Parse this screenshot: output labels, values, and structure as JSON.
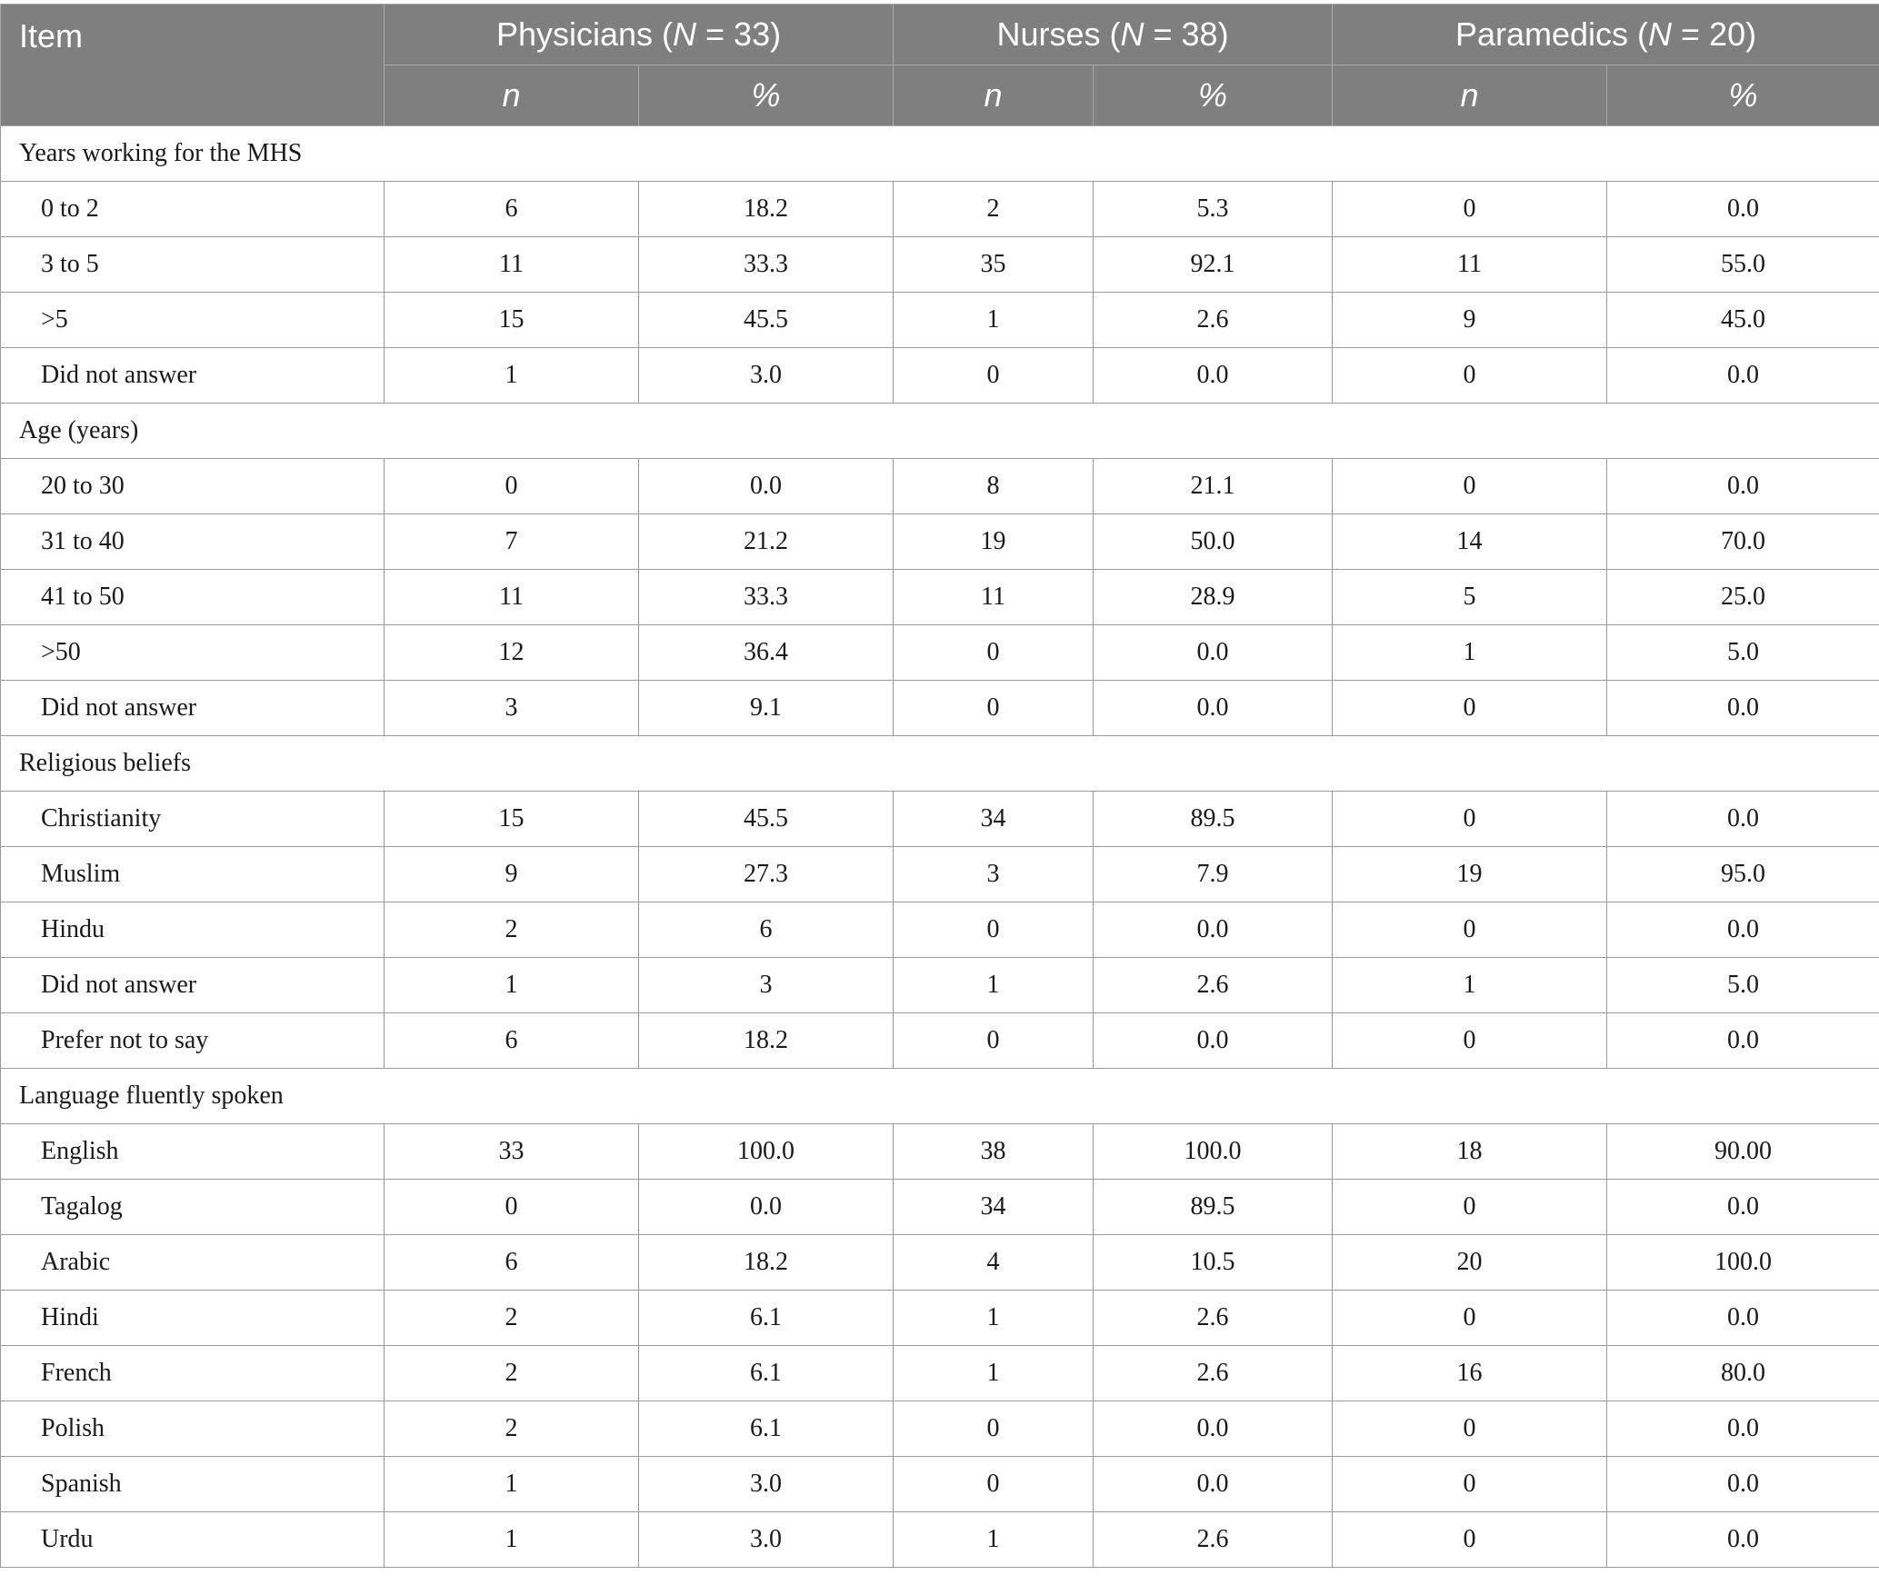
{
  "header": {
    "item": "Item",
    "groups": [
      {
        "name": "Physicians",
        "n_label": "N",
        "n_text": " = 33)"
      },
      {
        "name": "Nurses",
        "n_label": "N",
        "n_text": " = 38)"
      },
      {
        "name": "Paramedics",
        "n_label": "N",
        "n_text": " = 20)"
      }
    ],
    "sub_n": "n",
    "sub_pct": "%"
  },
  "sections": [
    {
      "title": "Years working for the MHS",
      "rows": [
        {
          "label": "0 to 2",
          "values": [
            "6",
            "18.2",
            "2",
            "5.3",
            "0",
            "0.0"
          ]
        },
        {
          "label": "3 to 5",
          "values": [
            "11",
            "33.3",
            "35",
            "92.1",
            "11",
            "55.0"
          ]
        },
        {
          "label": ">5",
          "values": [
            "15",
            "45.5",
            "1",
            "2.6",
            "9",
            "45.0"
          ]
        },
        {
          "label": "Did not answer",
          "values": [
            "1",
            "3.0",
            "0",
            "0.0",
            "0",
            "0.0"
          ]
        }
      ]
    },
    {
      "title": "Age (years)",
      "rows": [
        {
          "label": "20 to 30",
          "values": [
            "0",
            "0.0",
            "8",
            "21.1",
            "0",
            "0.0"
          ]
        },
        {
          "label": "31 to 40",
          "values": [
            "7",
            "21.2",
            "19",
            "50.0",
            "14",
            "70.0"
          ]
        },
        {
          "label": "41 to 50",
          "values": [
            "11",
            "33.3",
            "11",
            "28.9",
            "5",
            "25.0"
          ]
        },
        {
          "label": ">50",
          "values": [
            "12",
            "36.4",
            "0",
            "0.0",
            "1",
            "5.0"
          ]
        },
        {
          "label": "Did not answer",
          "values": [
            "3",
            "9.1",
            "0",
            "0.0",
            "0",
            "0.0"
          ]
        }
      ]
    },
    {
      "title": "Religious beliefs",
      "rows": [
        {
          "label": "Christianity",
          "values": [
            "15",
            "45.5",
            "34",
            "89.5",
            "0",
            "0.0"
          ]
        },
        {
          "label": "Muslim",
          "values": [
            "9",
            "27.3",
            "3",
            "7.9",
            "19",
            "95.0"
          ]
        },
        {
          "label": "Hindu",
          "values": [
            "2",
            "6",
            "0",
            "0.0",
            "0",
            "0.0"
          ]
        },
        {
          "label": "Did not answer",
          "values": [
            "1",
            "3",
            "1",
            "2.6",
            "1",
            "5.0"
          ]
        },
        {
          "label": "Prefer not to say",
          "values": [
            "6",
            "18.2",
            "0",
            "0.0",
            "0",
            "0.0"
          ]
        }
      ]
    },
    {
      "title": "Language fluently spoken",
      "rows": [
        {
          "label": "English",
          "values": [
            "33",
            "100.0",
            "38",
            "100.0",
            "18",
            "90.00"
          ]
        },
        {
          "label": "Tagalog",
          "values": [
            "0",
            "0.0",
            "34",
            "89.5",
            "0",
            "0.0"
          ]
        },
        {
          "label": "Arabic",
          "values": [
            "6",
            "18.2",
            "4",
            "10.5",
            "20",
            "100.0"
          ]
        },
        {
          "label": "Hindi",
          "values": [
            "2",
            "6.1",
            "1",
            "2.6",
            "0",
            "0.0"
          ]
        },
        {
          "label": "French",
          "values": [
            "2",
            "6.1",
            "1",
            "2.6",
            "16",
            "80.0"
          ]
        },
        {
          "label": "Polish",
          "values": [
            "2",
            "6.1",
            "0",
            "0.0",
            "0",
            "0.0"
          ]
        },
        {
          "label": "Spanish",
          "values": [
            "1",
            "3.0",
            "0",
            "0.0",
            "0",
            "0.0"
          ]
        },
        {
          "label": "Urdu",
          "values": [
            "1",
            "3.0",
            "1",
            "2.6",
            "0",
            "0.0"
          ]
        }
      ]
    }
  ]
}
